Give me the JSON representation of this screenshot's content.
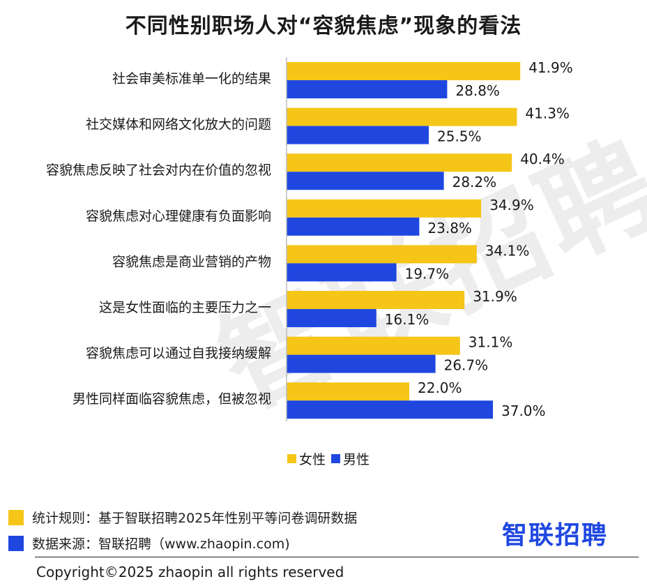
{
  "title": "不同性别职场人对“容貌焦虑”现象的看法",
  "watermark": "智联招聘",
  "colors": {
    "female": "#F5C518",
    "male": "#1F47E0",
    "axis": "#bbbbbb",
    "logo": "#1F47E0"
  },
  "chart_data": {
    "type": "bar",
    "orientation": "horizontal",
    "categories": [
      "社会审美标准单一化的结果",
      "社交媒体和网络文化放大的问题",
      "容貌焦虑反映了社会对内在价值的忽视",
      "容貌焦虑对心理健康有负面影响",
      "容貌焦虑是商业营销的产物",
      "这是女性面临的主要压力之一",
      "容貌焦虑可以通过自我接纳缓解",
      "男性同样面临容貌焦虑，但被忽视"
    ],
    "series": [
      {
        "name": "女性",
        "values": [
          41.9,
          41.3,
          40.4,
          34.9,
          34.1,
          31.9,
          31.1,
          22.0
        ],
        "labels": [
          "41.9%",
          "41.3%",
          "40.4%",
          "34.9%",
          "34.1%",
          "31.9%",
          "31.1%",
          "22.0%"
        ]
      },
      {
        "name": "男性",
        "values": [
          28.8,
          25.5,
          28.2,
          23.8,
          19.7,
          16.1,
          26.7,
          37.0
        ],
        "labels": [
          "28.8%",
          "25.5%",
          "28.2%",
          "23.8%",
          "19.7%",
          "16.1%",
          "26.7%",
          "37.0%"
        ]
      }
    ],
    "legend_position": "bottom",
    "grid": false
  },
  "legend": {
    "female": "女性",
    "male": "男性"
  },
  "notes": {
    "rule": "统计规则：基于智联招聘2025年性别平等问卷调研数据",
    "source": "数据来源：智联招聘（www.zhaopin.com)"
  },
  "logo": "智联招聘",
  "copyright": "Copyright©2025 zhaopin all rights reserved"
}
